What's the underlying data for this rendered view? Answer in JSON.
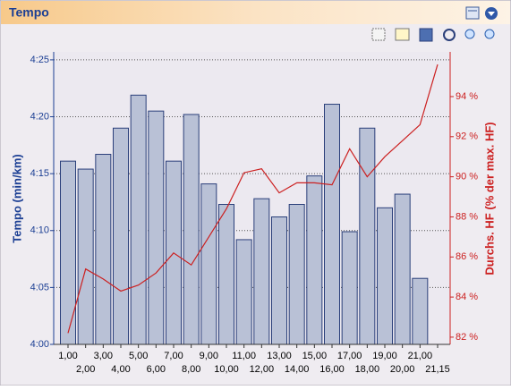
{
  "window": {
    "title": "Tempo"
  },
  "chart_data": {
    "type": "bar-line",
    "y_label": "Tempo (min/km)",
    "y2_label": "Durchs. HF (% der max. HF)",
    "categories": [
      "1,00",
      "2,00",
      "3,00",
      "4,00",
      "5,00",
      "6,00",
      "7,00",
      "8,00",
      "9,00",
      "10,00",
      "11,00",
      "12,00",
      "13,00",
      "14,00",
      "15,00",
      "16,00",
      "17,00",
      "18,00",
      "19,00",
      "20,00",
      "21,00",
      "21,15"
    ],
    "series": [
      {
        "type": "bar",
        "color": "#b9c1d6",
        "values": [
          256.1,
          255.4,
          256.7,
          259.0,
          261.9,
          260.5,
          256.1,
          260.2,
          254.1,
          252.3,
          249.2,
          252.8,
          251.2,
          252.3,
          254.8,
          261.1,
          249.9,
          259.0,
          252.0,
          253.2,
          245.8,
          null
        ]
      },
      {
        "type": "line",
        "axis": "y2",
        "color": "#cc2020",
        "values": [
          82.2,
          85.4,
          84.9,
          84.3,
          84.6,
          85.2,
          86.2,
          85.6,
          87.0,
          88.4,
          90.2,
          90.4,
          89.2,
          89.7,
          89.7,
          89.6,
          91.4,
          90.0,
          91.0,
          91.8,
          92.6,
          95.6
        ]
      }
    ],
    "ylim": [
      240,
      265.7
    ],
    "yticks": [
      {
        "value": 240,
        "label": "4:00"
      },
      {
        "value": 245,
        "label": "4:05"
      },
      {
        "value": 250,
        "label": "4:10"
      },
      {
        "value": 255,
        "label": "4:15"
      },
      {
        "value": 260,
        "label": "4:20"
      },
      {
        "value": 265,
        "label": "4:25"
      }
    ],
    "y2lim": [
      81.64,
      96.23
    ],
    "y2ticks": [
      {
        "value": 82,
        "label": "82 %"
      },
      {
        "value": 84,
        "label": "84 %"
      },
      {
        "value": 86,
        "label": "86 %"
      },
      {
        "value": 88,
        "label": "88 %"
      },
      {
        "value": 90,
        "label": "90 %"
      },
      {
        "value": 92,
        "label": "92 %"
      },
      {
        "value": 94,
        "label": "94 %"
      }
    ],
    "grid": true
  }
}
